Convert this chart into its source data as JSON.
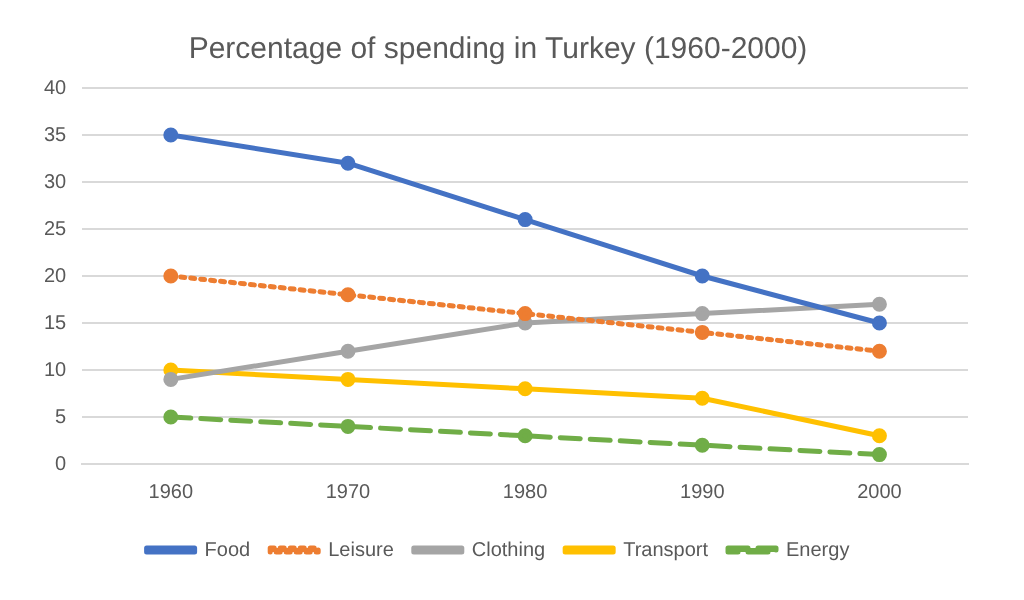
{
  "chart_data": {
    "type": "line",
    "title": "Percentage of spending in Turkey (1960-2000)",
    "categories": [
      "1960",
      "1970",
      "1980",
      "1990",
      "2000"
    ],
    "series": [
      {
        "name": "Food",
        "color": "#4472c4",
        "values": [
          35,
          32,
          26,
          20,
          15
        ],
        "line_style": "solid"
      },
      {
        "name": "Leisure",
        "color": "#ed7d31",
        "values": [
          20,
          18,
          16,
          14,
          12
        ],
        "line_style": "dotted"
      },
      {
        "name": "Clothing",
        "color": "#a5a5a5",
        "values": [
          9,
          12,
          15,
          16,
          17
        ],
        "line_style": "solid"
      },
      {
        "name": "Transport",
        "color": "#ffc000",
        "values": [
          10,
          9,
          8,
          7,
          3
        ],
        "line_style": "solid"
      },
      {
        "name": "Energy",
        "color": "#70ad47",
        "values": [
          5,
          4,
          3,
          2,
          1
        ],
        "line_style": "dashed"
      }
    ],
    "ylim": [
      0,
      40
    ],
    "yticks": [
      0,
      5,
      10,
      15,
      20,
      25,
      30,
      35,
      40
    ],
    "grid": "y",
    "legend": "bottom",
    "marker": "circle"
  }
}
